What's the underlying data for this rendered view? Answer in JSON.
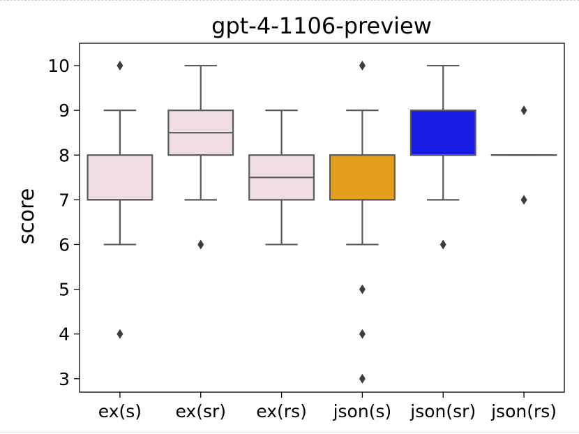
{
  "chart_data": {
    "type": "box",
    "title": "gpt-4-1106-preview",
    "xlabel": "",
    "ylabel": "score",
    "ylim": [
      2.7,
      10.5
    ],
    "yticks": [
      3,
      4,
      5,
      6,
      7,
      8,
      9,
      10
    ],
    "grid": false,
    "categories": [
      "ex(s)",
      "ex(sr)",
      "ex(rs)",
      "json(s)",
      "json(sr)",
      "json(rs)"
    ],
    "boxes": [
      {
        "category": "ex(s)",
        "whisker_low": 6,
        "q1": 7,
        "median": 7,
        "q3": 8,
        "whisker_high": 9,
        "outliers": [
          10,
          4
        ],
        "color": "#f0dde4"
      },
      {
        "category": "ex(sr)",
        "whisker_low": 7,
        "q1": 8,
        "median": 8.5,
        "q3": 9,
        "whisker_high": 10,
        "outliers": [
          6
        ],
        "color": "#f0dde4"
      },
      {
        "category": "ex(rs)",
        "whisker_low": 6,
        "q1": 7,
        "median": 7.5,
        "q3": 8,
        "whisker_high": 9,
        "outliers": [],
        "color": "#f0dde4"
      },
      {
        "category": "json(s)",
        "whisker_low": 6,
        "q1": 7,
        "median": 7,
        "q3": 8,
        "whisker_high": 9,
        "outliers": [
          10,
          5,
          4,
          3
        ],
        "color": "#e59e1e"
      },
      {
        "category": "json(sr)",
        "whisker_low": 7,
        "q1": 8,
        "median": 8,
        "q3": 9,
        "whisker_high": 10,
        "outliers": [
          6
        ],
        "color": "#1a1ae6"
      },
      {
        "category": "json(rs)",
        "whisker_low": 8,
        "q1": 8,
        "median": 8,
        "q3": 8,
        "whisker_high": 8,
        "outliers": [
          9,
          7
        ],
        "color": "#f0dde4"
      }
    ],
    "line_color": "#5a5a5a",
    "outlier_color": "#3d3d3d"
  }
}
